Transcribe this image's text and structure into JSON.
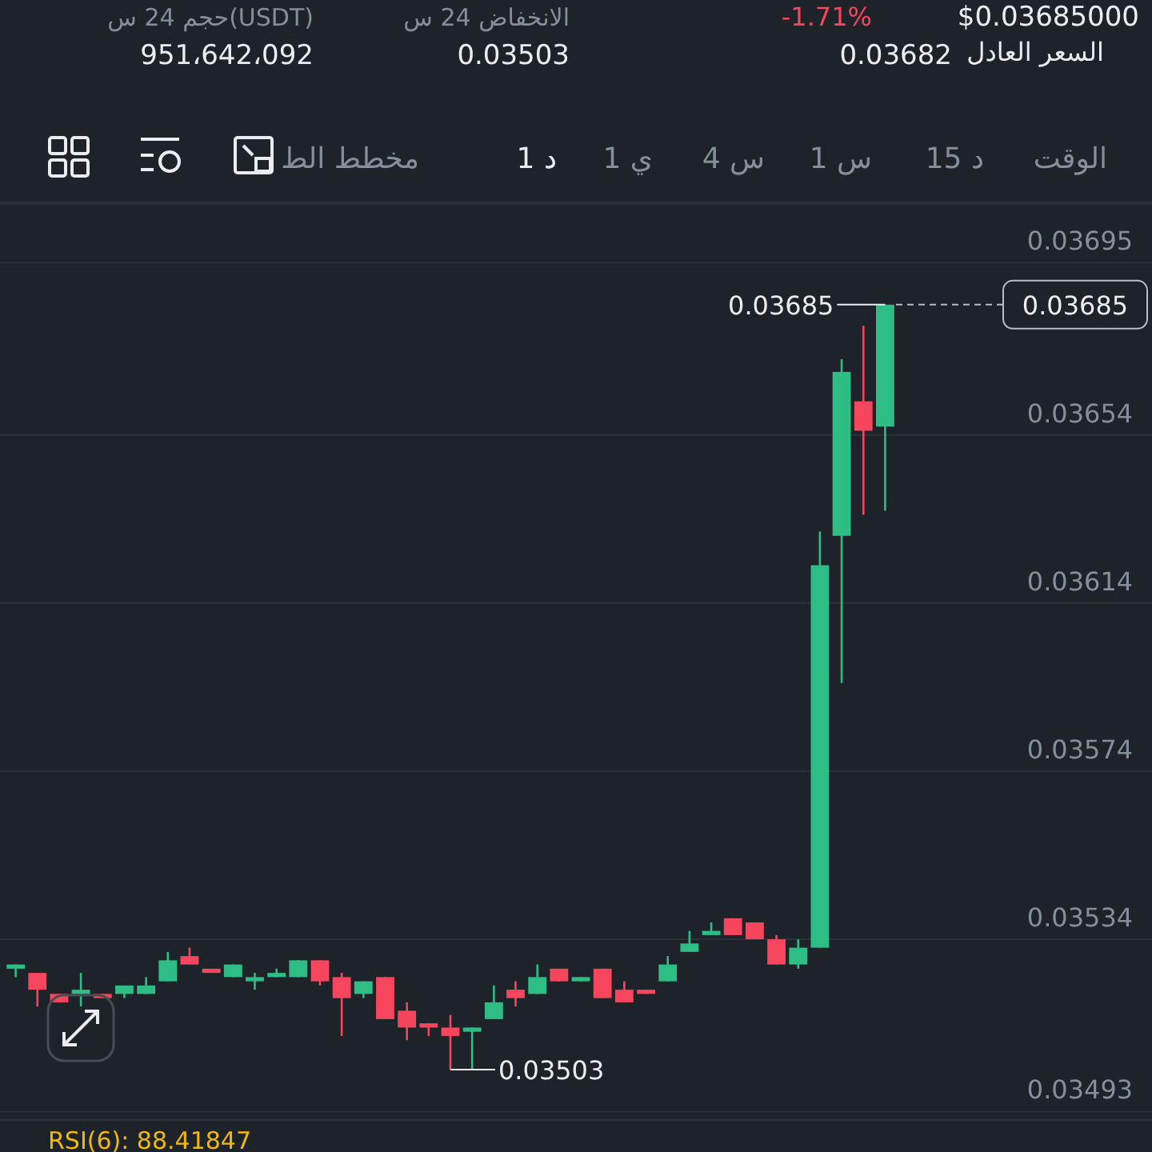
{
  "chart_data": {
    "type": "candlestick",
    "categories": [
      null,
      null,
      null,
      null,
      null,
      null,
      null,
      null,
      null,
      null,
      null,
      null,
      null,
      null,
      null,
      null,
      null,
      null,
      null,
      null,
      null,
      null,
      null,
      null,
      null,
      null,
      null,
      null,
      null,
      null,
      null,
      null,
      null,
      null,
      null,
      null,
      null,
      null,
      null,
      null,
      null
    ],
    "ohlc": [
      [
        0.03527,
        0.03528,
        0.03525,
        0.03528
      ],
      [
        0.03526,
        0.03526,
        0.03518,
        0.03522
      ],
      [
        0.03521,
        0.03521,
        0.03519,
        0.03519
      ],
      [
        0.03521,
        0.03526,
        0.03518,
        0.03522
      ],
      [
        0.03521,
        0.03521,
        0.0352,
        0.0352
      ],
      [
        0.03521,
        0.03523,
        0.0352,
        0.03523
      ],
      [
        0.03521,
        0.03525,
        0.03521,
        0.03523
      ],
      [
        0.03524,
        0.03531,
        0.03524,
        0.03529
      ],
      [
        0.0353,
        0.03532,
        0.03528,
        0.03528
      ],
      [
        0.03527,
        0.03527,
        0.03526,
        0.03526
      ],
      [
        0.03525,
        0.03528,
        0.03525,
        0.03528
      ],
      [
        0.03524,
        0.03526,
        0.03522,
        0.03525
      ],
      [
        0.03525,
        0.03527,
        0.03525,
        0.03526
      ],
      [
        0.03525,
        0.03529,
        0.03525,
        0.03529
      ],
      [
        0.03529,
        0.03529,
        0.03523,
        0.03524
      ],
      [
        0.03525,
        0.03526,
        0.03511,
        0.0352
      ],
      [
        0.03521,
        0.03524,
        0.0352,
        0.03524
      ],
      [
        0.03525,
        0.03525,
        0.03515,
        0.03515
      ],
      [
        0.03517,
        0.03519,
        0.0351,
        0.03513
      ],
      [
        0.03514,
        0.03514,
        0.03511,
        0.03513
      ],
      [
        0.03513,
        0.03516,
        0.03503,
        0.03511
      ],
      [
        0.03512,
        0.03513,
        0.03503,
        0.03513
      ],
      [
        0.03515,
        0.03523,
        0.03515,
        0.03519
      ],
      [
        0.03522,
        0.03524,
        0.03518,
        0.0352
      ],
      [
        0.03521,
        0.03528,
        0.03521,
        0.03525
      ],
      [
        0.03527,
        0.03527,
        0.03524,
        0.03524
      ],
      [
        0.03524,
        0.03525,
        0.03524,
        0.03525
      ],
      [
        0.03527,
        0.03527,
        0.0352,
        0.0352
      ],
      [
        0.03522,
        0.03524,
        0.03519,
        0.03519
      ],
      [
        0.03522,
        0.03522,
        0.03521,
        0.03521
      ],
      [
        0.03524,
        0.0353,
        0.03524,
        0.03528
      ],
      [
        0.03531,
        0.03536,
        0.03531,
        0.03533
      ],
      [
        0.03535,
        0.03538,
        0.03535,
        0.03536
      ],
      [
        0.03539,
        0.03539,
        0.03535,
        0.03535
      ],
      [
        0.03538,
        0.03538,
        0.03534,
        0.03534
      ],
      [
        0.03534,
        0.03535,
        0.03528,
        0.03528
      ],
      [
        0.03528,
        0.03534,
        0.03527,
        0.03532
      ],
      [
        0.03532,
        0.03631,
        0.03532,
        0.03623
      ],
      [
        0.0363,
        0.03672,
        0.03595,
        0.03669
      ],
      [
        0.03662,
        0.0368,
        0.03635,
        0.03655
      ],
      [
        0.03656,
        0.03685,
        0.03636,
        0.03685
      ]
    ],
    "colors": [
      "#2ebd85",
      "#f6465d",
      "#f6465d",
      "#2ebd85",
      "#f6465d",
      "#2ebd85",
      "#2ebd85",
      "#2ebd85",
      "#f6465d",
      "#f6465d",
      "#2ebd85",
      "#2ebd85",
      "#2ebd85",
      "#2ebd85",
      "#f6465d",
      "#f6465d",
      "#2ebd85",
      "#f6465d",
      "#f6465d",
      "#f6465d",
      "#f6465d",
      "#2ebd85",
      "#2ebd85",
      "#f6465d",
      "#2ebd85",
      "#f6465d",
      "#2ebd85",
      "#f6465d",
      "#f6465d",
      "#f6465d",
      "#2ebd85",
      "#2ebd85",
      "#2ebd85",
      "#f6465d",
      "#f6465d",
      "#f6465d",
      "#2ebd85",
      "#2ebd85",
      "#2ebd85",
      "#f6465d",
      "#2ebd85"
    ],
    "ylim": [
      0.03491,
      0.03708
    ],
    "yticks": [
      0.03493,
      0.03534,
      0.03574,
      0.03614,
      0.03654,
      0.03695
    ],
    "grid": "y",
    "ref_lines": [
      {
        "axis": "y",
        "value": 0.03685,
        "label": "0.03685",
        "line_style": "dashed",
        "color": "#b7bdc6"
      }
    ],
    "annotations": [
      "0.03685",
      "0.03503",
      "حجم 24 س(USDT)",
      "الانخفاض 24 س",
      "-1.71%",
      "$0.03685000",
      "951،642،092",
      "0.03503",
      "السعر العادل",
      "0.03682",
      "الوقت",
      "15 د",
      "1 س",
      "4 س",
      "1 ي",
      "1 د",
      "مخطط الط",
      "RSI(6): 88.41847"
    ]
  }
}
